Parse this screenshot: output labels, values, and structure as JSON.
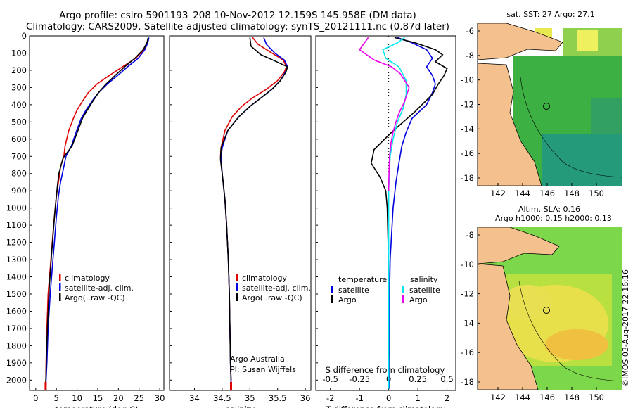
{
  "header": {
    "title_line1": "Argo profile: csiro 5901193_208 10-Nov-2012 12.159S 145.958E (DM data)",
    "title_line2": "Climatology: CARS2009. Satellite-adjusted climatology: synTS_20121111.nc (0.87d later)"
  },
  "colors": {
    "climatology": "#e00000",
    "satellite": "#0000e0",
    "argo": "#000000",
    "s_satellite": "#00e5ee",
    "s_argo": "#ee00ee"
  },
  "chart_data": [
    {
      "type": "line",
      "id": "temperature",
      "xlabel": "temperature (deg C)",
      "ylabel": "",
      "xlim": [
        -1.5,
        31
      ],
      "ylim": [
        2060,
        0
      ],
      "xticks": [
        0,
        5,
        10,
        15,
        20,
        25,
        30
      ],
      "yticks": [
        0,
        100,
        200,
        300,
        400,
        500,
        600,
        700,
        800,
        900,
        1000,
        1100,
        1200,
        1300,
        1400,
        1500,
        1600,
        1700,
        1800,
        1900,
        2000
      ],
      "legend": [
        "climatology",
        "satellite-adj. clim.",
        "Argo(..raw -QC)"
      ],
      "series": [
        {
          "name": "climatology",
          "color": "#e00000",
          "x": [
            27.3,
            27.0,
            26.2,
            24.2,
            21.0,
            17.8,
            14.8,
            12.7,
            11.3,
            10.0,
            9.1,
            8.0,
            7.1,
            6.8,
            6.0,
            5.5,
            5.0,
            4.5,
            4.0,
            3.5,
            3.0,
            2.7,
            2.5,
            2.45,
            2.4
          ],
          "y": [
            10,
            40,
            80,
            130,
            180,
            230,
            280,
            330,
            380,
            430,
            480,
            550,
            640,
            700,
            760,
            850,
            930,
            1050,
            1200,
            1350,
            1500,
            1700,
            1900,
            2000,
            2050
          ]
        },
        {
          "name": "satellite-adj. clim.",
          "color": "#0000e0",
          "x": [
            27.4,
            27.1,
            26.4,
            24.8,
            22.2,
            19.8,
            17.3,
            15.2,
            13.6,
            12.2,
            11.0,
            9.9,
            8.6,
            7.3,
            6.8,
            6.0,
            5.5,
            5.0,
            4.5,
            4.0,
            3.5,
            3.0,
            2.7,
            2.5,
            2.45
          ],
          "y": [
            10,
            40,
            80,
            130,
            180,
            230,
            280,
            330,
            380,
            430,
            480,
            550,
            640,
            700,
            760,
            850,
            930,
            1050,
            1200,
            1350,
            1500,
            1700,
            1900,
            2000,
            2050
          ]
        },
        {
          "name": "Argo(..raw -QC)",
          "color": "#000000",
          "x": [
            27.2,
            26.9,
            26.0,
            24.0,
            21.5,
            19.2,
            17.0,
            15.2,
            13.8,
            12.5,
            11.3,
            10.2,
            8.8,
            6.6,
            5.6,
            5.2,
            4.8,
            4.3,
            3.8,
            3.3,
            2.9,
            2.6,
            2.45,
            2.4
          ],
          "y": [
            10,
            40,
            80,
            130,
            180,
            230,
            280,
            330,
            380,
            430,
            480,
            550,
            640,
            710,
            800,
            880,
            980,
            1120,
            1280,
            1450,
            1650,
            1850,
            2000,
            2020
          ]
        }
      ]
    },
    {
      "type": "line",
      "id": "salinity",
      "xlabel": "salinity",
      "ylabel": "",
      "xlim": [
        33.55,
        36.1
      ],
      "ylim": [
        2060,
        0
      ],
      "xticks": [
        34,
        34.5,
        35,
        35.5,
        36
      ],
      "yticks": [],
      "legend": [
        "climatology",
        "satellite-adj. clim.",
        "Argo(..raw -QC)"
      ],
      "annotation": [
        "Argo Australia",
        "PI: Susan Wijffels"
      ],
      "series": [
        {
          "name": "climatology",
          "color": "#e00000",
          "x": [
            35.05,
            35.15,
            35.4,
            35.6,
            35.66,
            35.62,
            35.5,
            35.3,
            35.05,
            34.85,
            34.68,
            34.55,
            34.48,
            34.47,
            34.5,
            34.55,
            34.58,
            34.61,
            34.63,
            34.64,
            34.65,
            34.66,
            34.66
          ],
          "y": [
            10,
            50,
            100,
            140,
            180,
            210,
            260,
            310,
            360,
            410,
            470,
            550,
            650,
            700,
            800,
            950,
            1100,
            1300,
            1500,
            1700,
            1900,
            2000,
            2050
          ]
        },
        {
          "name": "satellite-adj. clim.",
          "color": "#0000e0",
          "x": [
            35.25,
            35.3,
            35.45,
            35.62,
            35.68,
            35.64,
            35.55,
            35.4,
            35.2,
            35.0,
            34.8,
            34.6,
            34.5,
            34.48,
            34.5,
            34.55,
            34.58,
            34.61,
            34.63,
            34.64,
            34.65,
            34.66,
            34.66
          ],
          "y": [
            10,
            50,
            100,
            140,
            180,
            210,
            260,
            310,
            360,
            410,
            470,
            550,
            650,
            700,
            800,
            950,
            1100,
            1300,
            1500,
            1700,
            1900,
            2000,
            2050
          ]
        },
        {
          "name": "Argo(..raw -QC)",
          "color": "#000000",
          "x": [
            35.0,
            35.02,
            35.2,
            35.48,
            35.68,
            35.65,
            35.55,
            35.4,
            35.2,
            35.0,
            34.8,
            34.6,
            34.48,
            34.47,
            34.5,
            34.55,
            34.58,
            34.61,
            34.63,
            34.64,
            34.65,
            34.66
          ],
          "y": [
            10,
            60,
            110,
            150,
            180,
            210,
            260,
            310,
            360,
            410,
            470,
            550,
            650,
            720,
            800,
            950,
            1100,
            1300,
            1500,
            1700,
            1900,
            2000
          ]
        }
      ]
    },
    {
      "type": "line",
      "id": "differences",
      "xlabel": "T difference from climatology",
      "xlabel_top": "S difference from climatology",
      "xlim": [
        -2.5,
        2.3
      ],
      "ylim": [
        2060,
        0
      ],
      "xticks": [
        -2,
        -1,
        0,
        1,
        2
      ],
      "xticks_s": [
        "-0.5",
        "-0.25",
        "0",
        "0.25",
        "0.5"
      ],
      "yticks": [],
      "legend_t": {
        "header": "temperature",
        "items": [
          "satellite",
          "Argo"
        ]
      },
      "legend_s": {
        "header": "salinity",
        "items": [
          "satellite",
          "Argo"
        ]
      },
      "series": [
        {
          "name": "T satellite",
          "color": "#0000e0",
          "x": [
            0.3,
            0.8,
            1.3,
            1.5,
            1.3,
            1.5,
            1.6,
            1.5,
            1.3,
            0.8,
            0.6,
            0.45,
            0.35,
            0.25,
            0.15,
            0.1,
            0.05,
            0.03,
            0.02,
            0.01,
            0.01
          ],
          "y": [
            10,
            40,
            80,
            130,
            180,
            230,
            280,
            330,
            400,
            480,
            560,
            640,
            740,
            850,
            1000,
            1150,
            1300,
            1500,
            1700,
            1900,
            2050
          ]
        },
        {
          "name": "T Argo",
          "color": "#000000",
          "x": [
            0.2,
            0.9,
            1.6,
            1.85,
            1.6,
            2.0,
            1.9,
            1.7,
            1.5,
            0.9,
            0.1,
            -0.5,
            -0.6,
            -0.3,
            -0.1,
            -0.05,
            -0.02,
            -0.01,
            0.0
          ],
          "y": [
            10,
            40,
            80,
            110,
            150,
            190,
            230,
            280,
            340,
            440,
            560,
            660,
            740,
            820,
            900,
            1000,
            1200,
            1500,
            2020
          ]
        },
        {
          "name": "S satellite",
          "color": "#00e5ee",
          "x": [
            0.55,
            0.3,
            -0.2,
            -0.1,
            0.35,
            0.6,
            0.6,
            0.5,
            0.3,
            0.15,
            0.05,
            0.0,
            0.0,
            0.0
          ],
          "y": [
            10,
            40,
            80,
            130,
            180,
            260,
            340,
            420,
            500,
            600,
            700,
            900,
            1500,
            2050
          ]
        },
        {
          "name": "S Argo",
          "color": "#ee00ee",
          "x": [
            -0.7,
            -1.0,
            -0.5,
            0.1,
            0.4,
            0.7,
            0.55,
            0.35,
            0.25,
            0.15,
            0.08,
            0.03,
            0.01,
            0.0
          ],
          "y": [
            10,
            80,
            140,
            180,
            220,
            300,
            380,
            450,
            500,
            560,
            620,
            700,
            800,
            900
          ]
        }
      ]
    }
  ],
  "maps": {
    "sst": {
      "title": "sat. SST: 27 Argo: 27.1",
      "lat_ticks": [
        "-6",
        "-8",
        "-10",
        "-12",
        "-14",
        "-16",
        "-18"
      ],
      "lon_ticks": [
        "142",
        "144",
        "146",
        "148",
        "150"
      ]
    },
    "sla": {
      "title_line1": "Altim. SLA: 0.16",
      "title_line2": "Argo h1000: 0.15 h2000: 0.13",
      "lat_ticks": [
        "-8",
        "-10",
        "-12",
        "-14",
        "-16",
        "-18"
      ],
      "lon_ticks": [
        "142",
        "144",
        "146",
        "148",
        "150"
      ]
    }
  },
  "footer": {
    "credit": "©IMOS 03-Aug-2017 22:16:16"
  }
}
